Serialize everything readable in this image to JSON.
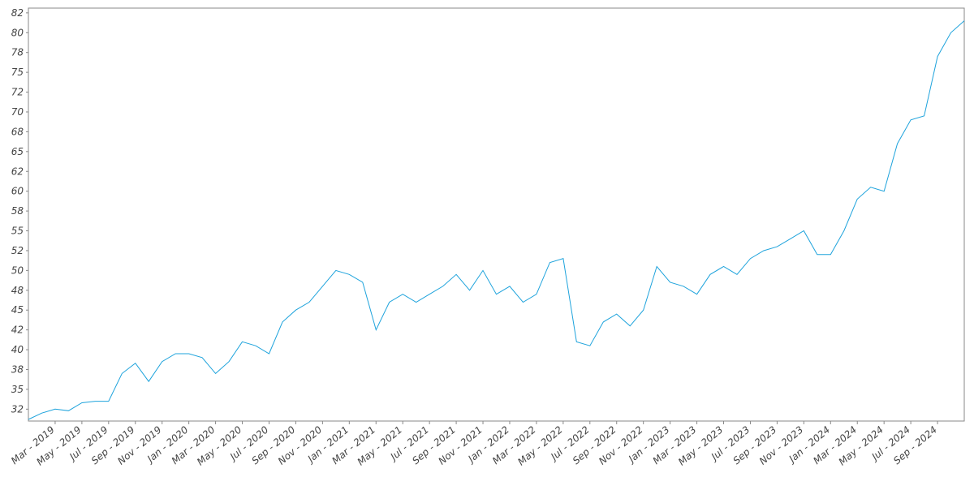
{
  "chart_data": {
    "type": "line",
    "x": [
      "2019-01",
      "2019-02",
      "2019-03",
      "2019-04",
      "2019-05",
      "2019-06",
      "2019-07",
      "2019-08",
      "2019-09",
      "2019-10",
      "2019-11",
      "2019-12",
      "2020-01",
      "2020-02",
      "2020-03",
      "2020-04",
      "2020-05",
      "2020-06",
      "2020-07",
      "2020-08",
      "2020-09",
      "2020-10",
      "2020-11",
      "2020-12",
      "2021-01",
      "2021-02",
      "2021-03",
      "2021-04",
      "2021-05",
      "2021-06",
      "2021-07",
      "2021-08",
      "2021-09",
      "2021-10",
      "2021-11",
      "2021-12",
      "2022-01",
      "2022-02",
      "2022-03",
      "2022-04",
      "2022-05",
      "2022-06",
      "2022-07",
      "2022-08",
      "2022-09",
      "2022-10",
      "2022-11",
      "2022-12",
      "2023-01",
      "2023-02",
      "2023-03",
      "2023-04",
      "2023-05",
      "2023-06",
      "2023-07",
      "2023-08",
      "2023-09",
      "2023-10",
      "2023-11",
      "2023-12",
      "2024-01",
      "2024-02",
      "2024-03",
      "2024-04",
      "2024-05",
      "2024-06",
      "2024-07",
      "2024-08",
      "2024-09",
      "2024-10",
      "2024-11"
    ],
    "series": [
      {
        "color": "#1ea3dc",
        "values": [
          31.2,
          32,
          32.5,
          32.3,
          33.3,
          33.5,
          33.5,
          37,
          38.3,
          36,
          38.5,
          39.5,
          39.5,
          39,
          37,
          38.5,
          41,
          40.5,
          39.5,
          43.5,
          45,
          46,
          48,
          50,
          49.5,
          48.5,
          42.5,
          46,
          47,
          46,
          47,
          48,
          49.5,
          47.5,
          50,
          47,
          48,
          46,
          47,
          51,
          51.5,
          41,
          40.5,
          43.5,
          44.5,
          43,
          45,
          50.5,
          48.5,
          48,
          47,
          49.5,
          50.5,
          49.5,
          51.5,
          52.5,
          53,
          54,
          55,
          52,
          52,
          55,
          59,
          60.5,
          60,
          66,
          69,
          69.5,
          77,
          80,
          81.5
        ]
      }
    ],
    "xlim": [
      "2019-01",
      "2024-11"
    ],
    "xticks": [
      {
        "value": "2019-03",
        "label": "Mar - 2019"
      },
      {
        "value": "2019-05",
        "label": "May - 2019"
      },
      {
        "value": "2019-07",
        "label": "Jul - 2019"
      },
      {
        "value": "2019-09",
        "label": "Sep - 2019"
      },
      {
        "value": "2019-11",
        "label": "Nov - 2019"
      },
      {
        "value": "2020-01",
        "label": "Jan - 2020"
      },
      {
        "value": "2020-03",
        "label": "Mar - 2020"
      },
      {
        "value": "2020-05",
        "label": "May - 2020"
      },
      {
        "value": "2020-07",
        "label": "Jul - 2020"
      },
      {
        "value": "2020-09",
        "label": "Sep - 2020"
      },
      {
        "value": "2020-11",
        "label": "Nov - 2020"
      },
      {
        "value": "2021-01",
        "label": "Jan - 2021"
      },
      {
        "value": "2021-03",
        "label": "Mar - 2021"
      },
      {
        "value": "2021-05",
        "label": "May - 2021"
      },
      {
        "value": "2021-07",
        "label": "Jul - 2021"
      },
      {
        "value": "2021-09",
        "label": "Sep - 2021"
      },
      {
        "value": "2021-11",
        "label": "Nov - 2021"
      },
      {
        "value": "2022-01",
        "label": "Jan - 2022"
      },
      {
        "value": "2022-03",
        "label": "Mar - 2022"
      },
      {
        "value": "2022-05",
        "label": "May - 2022"
      },
      {
        "value": "2022-07",
        "label": "Jul - 2022"
      },
      {
        "value": "2022-09",
        "label": "Sep - 2022"
      },
      {
        "value": "2022-11",
        "label": "Nov - 2022"
      },
      {
        "value": "2023-01",
        "label": "Jan - 2023"
      },
      {
        "value": "2023-03",
        "label": "Mar - 2023"
      },
      {
        "value": "2023-05",
        "label": "May - 2023"
      },
      {
        "value": "2023-07",
        "label": "Jul - 2023"
      },
      {
        "value": "2023-09",
        "label": "Sep - 2023"
      },
      {
        "value": "2023-11",
        "label": "Nov - 2023"
      },
      {
        "value": "2024-01",
        "label": "Jan - 2024"
      },
      {
        "value": "2024-03",
        "label": "Mar - 2024"
      },
      {
        "value": "2024-05",
        "label": "May - 2024"
      },
      {
        "value": "2024-07",
        "label": "Jul - 2024"
      },
      {
        "value": "2024-09",
        "label": "Sep - 2024"
      }
    ],
    "ylim": [
      31,
      83.1
    ],
    "yticks": [
      {
        "value": 32.5,
        "label": "32"
      },
      35,
      {
        "value": 37.5,
        "label": "38"
      },
      40,
      {
        "value": 42.5,
        "label": "42"
      },
      45,
      {
        "value": 47.5,
        "label": "48"
      },
      50,
      {
        "value": 52.5,
        "label": "52"
      },
      55,
      {
        "value": 57.5,
        "label": "58"
      },
      60,
      {
        "value": 62.5,
        "label": "62"
      },
      65,
      {
        "value": 67.5,
        "label": "68"
      },
      70,
      {
        "value": 72.5,
        "label": "72"
      },
      75,
      {
        "value": 77.5,
        "label": "78"
      },
      80,
      {
        "value": 82.5,
        "label": "82"
      }
    ],
    "grid": false
  }
}
